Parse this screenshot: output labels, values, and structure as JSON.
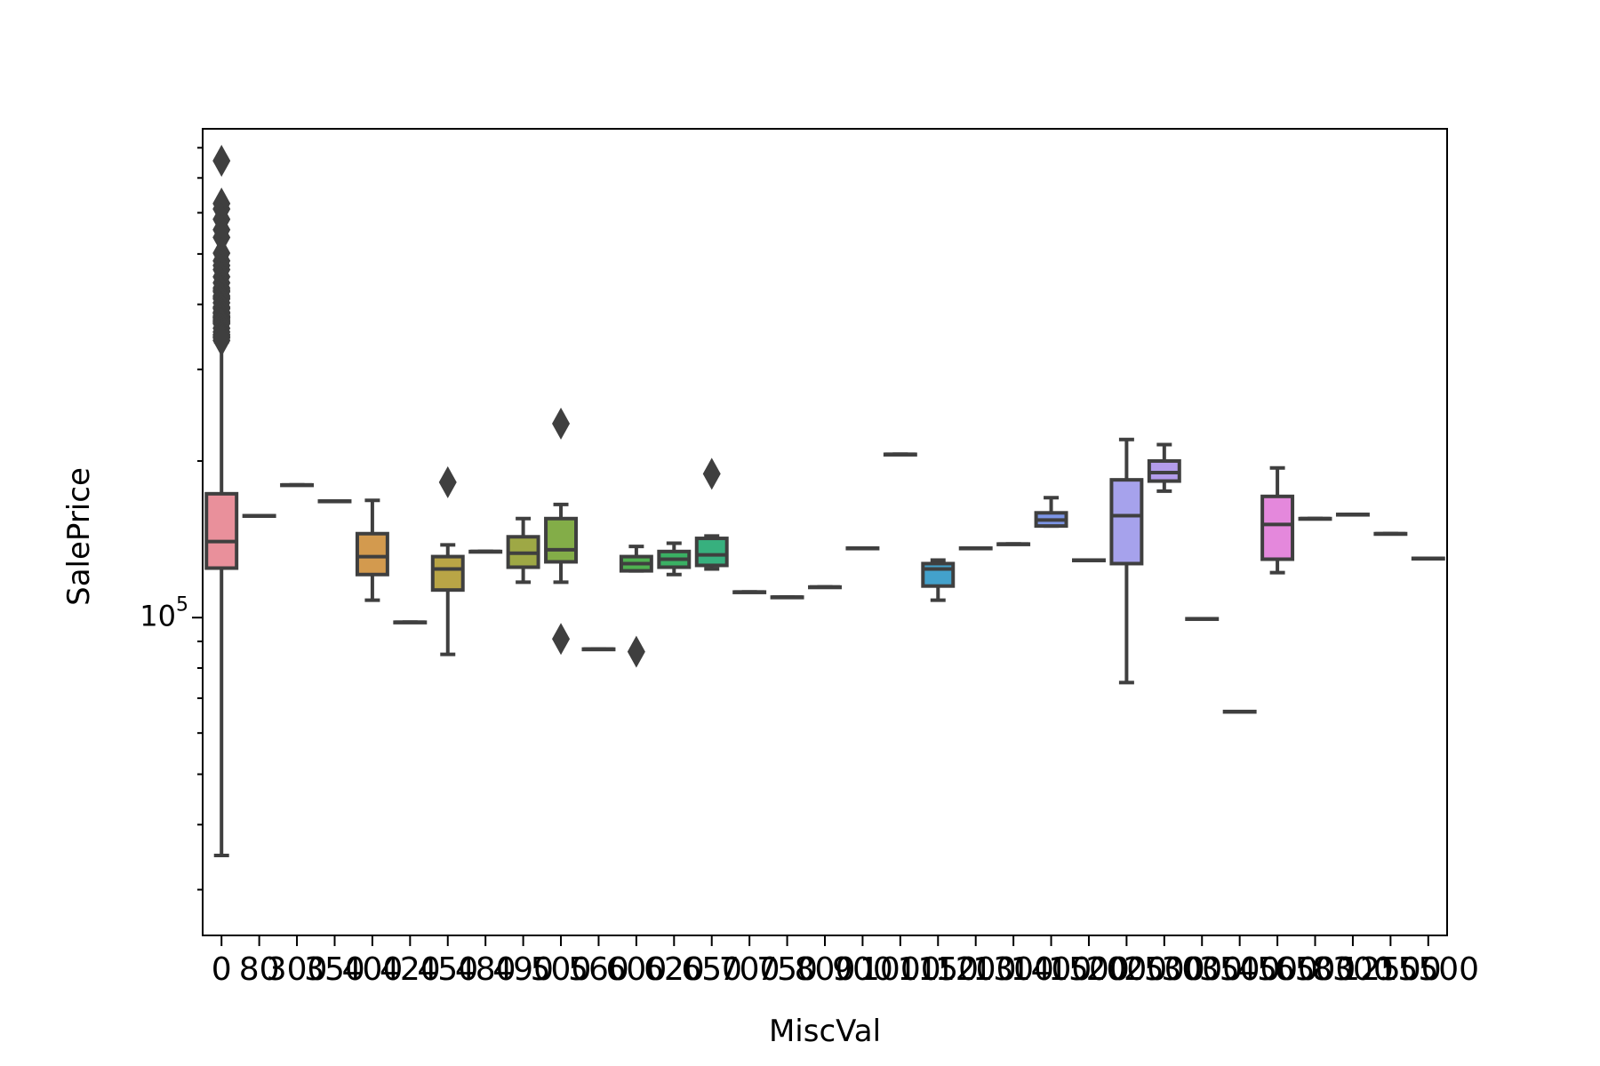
{
  "chart_data": {
    "type": "box",
    "xlabel": "MiscVal",
    "ylabel": "SalePrice",
    "yscale": "log",
    "ylim": [
      24500,
      870000
    ],
    "y_tick_label": {
      "base": "10",
      "exponent": "5",
      "value": 100000
    },
    "grid": false,
    "legend": "none",
    "categories": [
      "0",
      "80",
      "300",
      "350",
      "400",
      "420",
      "450",
      "480",
      "490",
      "500",
      "560",
      "600",
      "620",
      "650",
      "700",
      "750",
      "800",
      "900",
      "1000",
      "1150",
      "1200",
      "1300",
      "1400",
      "1500",
      "2000",
      "2500",
      "3000",
      "3500",
      "4500",
      "6500",
      "8300",
      "12500",
      "15500"
    ],
    "boxes": [
      {
        "q1": 124500,
        "median": 140000,
        "q3": 173000,
        "whislo": 34900,
        "whishi": 339000,
        "color": "#e9909b",
        "fliers": [
          755000,
          625000,
          610000,
          582933,
          556581,
          538000,
          501837,
          485000,
          475000,
          466500,
          451950,
          440000,
          430000,
          426000,
          423000,
          415298,
          412500,
          410000,
          402861,
          395192,
          394617,
          392500,
          386250,
          385000,
          383970,
          380000,
          378500,
          377500,
          377426,
          375000,
          372500,
          370878,
          369900,
          368000,
          367294,
          360000,
          354000,
          350000,
          348000,
          345474,
          345000,
          341000
        ]
      },
      {
        "q1": 157000,
        "median": 157000,
        "q3": 157000,
        "whislo": 157000,
        "whishi": 157000,
        "color": "#e59a78",
        "fliers": []
      },
      {
        "q1": 179900,
        "median": 179900,
        "q3": 179900,
        "whislo": 179900,
        "whishi": 179900,
        "color": "#dea15b",
        "fliers": []
      },
      {
        "q1": 167500,
        "median": 167500,
        "q3": 167500,
        "whislo": 167500,
        "whishi": 167500,
        "color": "#d7a449",
        "fliers": []
      },
      {
        "q1": 121000,
        "median": 131000,
        "q3": 145000,
        "whislo": 108000,
        "whishi": 168000,
        "color": "#d39a4e",
        "fliers": []
      },
      {
        "q1": 98000,
        "median": 98000,
        "q3": 98000,
        "whislo": 98000,
        "whishi": 98000,
        "color": "#c8a249",
        "fliers": []
      },
      {
        "q1": 113000,
        "median": 124000,
        "q3": 131000,
        "whislo": 85000,
        "whishi": 138000,
        "color": "#b9a546",
        "fliers": [
          182000
        ]
      },
      {
        "q1": 134000,
        "median": 134000,
        "q3": 134000,
        "whislo": 134000,
        "whishi": 134000,
        "color": "#a8a844",
        "fliers": []
      },
      {
        "q1": 125000,
        "median": 133000,
        "q3": 143000,
        "whislo": 117000,
        "whishi": 155000,
        "color": "#9ea845",
        "fliers": []
      },
      {
        "q1": 128000,
        "median": 135000,
        "q3": 155000,
        "whislo": 117000,
        "whishi": 165000,
        "color": "#83ad48",
        "fliers": [
          236000,
          91000
        ]
      },
      {
        "q1": 87000,
        "median": 87000,
        "q3": 87000,
        "whislo": 87000,
        "whishi": 87000,
        "color": "#6aaf49",
        "fliers": []
      },
      {
        "q1": 123000,
        "median": 127000,
        "q3": 131000,
        "whislo": 123000,
        "whishi": 137000,
        "color": "#4fb050",
        "fliers": [
          86000
        ]
      },
      {
        "q1": 125000,
        "median": 129500,
        "q3": 134000,
        "whislo": 121000,
        "whishi": 139000,
        "color": "#3ab063",
        "fliers": []
      },
      {
        "q1": 126000,
        "median": 132000,
        "q3": 142000,
        "whislo": 124000,
        "whishi": 143500,
        "color": "#37b07e",
        "fliers": [
          189000
        ]
      },
      {
        "q1": 112000,
        "median": 112000,
        "q3": 112000,
        "whislo": 112000,
        "whishi": 112000,
        "color": "#38ae92",
        "fliers": []
      },
      {
        "q1": 109500,
        "median": 109500,
        "q3": 109500,
        "whislo": 109500,
        "whishi": 109500,
        "color": "#39ab9f",
        "fliers": []
      },
      {
        "q1": 114500,
        "median": 114500,
        "q3": 114500,
        "whislo": 114500,
        "whishi": 114500,
        "color": "#3aa9ab",
        "fliers": []
      },
      {
        "q1": 136000,
        "median": 136000,
        "q3": 136000,
        "whislo": 136000,
        "whishi": 136000,
        "color": "#3ba7b7",
        "fliers": []
      },
      {
        "q1": 206000,
        "median": 206000,
        "q3": 206000,
        "whislo": 206000,
        "whishi": 206000,
        "color": "#3da4c2",
        "fliers": []
      },
      {
        "q1": 115000,
        "median": 124000,
        "q3": 127000,
        "whislo": 108000,
        "whishi": 129000,
        "color": "#43a1cb",
        "fliers": []
      },
      {
        "q1": 136000,
        "median": 136000,
        "q3": 136000,
        "whislo": 136000,
        "whishi": 136000,
        "color": "#4f9ed6",
        "fliers": []
      },
      {
        "q1": 138500,
        "median": 138500,
        "q3": 138500,
        "whislo": 138500,
        "whishi": 138500,
        "color": "#6399e0",
        "fliers": []
      },
      {
        "q1": 150000,
        "median": 154000,
        "q3": 159000,
        "whislo": 150000,
        "whishi": 170000,
        "color": "#7c95e6",
        "fliers": []
      },
      {
        "q1": 129000,
        "median": 129000,
        "q3": 129000,
        "whislo": 129000,
        "whishi": 129000,
        "color": "#9291e8",
        "fliers": []
      },
      {
        "q1": 127000,
        "median": 157000,
        "q3": 184000,
        "whislo": 75000,
        "whishi": 220000,
        "color": "#a6a2ec",
        "fliers": []
      },
      {
        "q1": 183000,
        "median": 190000,
        "q3": 200000,
        "whislo": 175000,
        "whishi": 215000,
        "color": "#b39ceb",
        "fliers": []
      },
      {
        "q1": 99500,
        "median": 99500,
        "q3": 99500,
        "whislo": 99500,
        "whishi": 99500,
        "color": "#c792ea",
        "fliers": []
      },
      {
        "q1": 66000,
        "median": 66000,
        "q3": 66000,
        "whislo": 66000,
        "whishi": 66000,
        "color": "#d58be6",
        "fliers": []
      },
      {
        "q1": 129500,
        "median": 151000,
        "q3": 171000,
        "whislo": 122000,
        "whishi": 194000,
        "color": "#e488dc",
        "fliers": []
      },
      {
        "q1": 155000,
        "median": 155000,
        "q3": 155000,
        "whislo": 155000,
        "whishi": 155000,
        "color": "#ea8ccf",
        "fliers": []
      },
      {
        "q1": 157900,
        "median": 157900,
        "q3": 157900,
        "whislo": 157900,
        "whishi": 157900,
        "color": "#ec8ec2",
        "fliers": []
      },
      {
        "q1": 145000,
        "median": 145000,
        "q3": 145000,
        "whislo": 145000,
        "whishi": 145000,
        "color": "#ed8fb5",
        "fliers": []
      },
      {
        "q1": 130000,
        "median": 130000,
        "q3": 130000,
        "whislo": 130000,
        "whishi": 130000,
        "color": "#ee90a8",
        "fliers": []
      }
    ]
  }
}
